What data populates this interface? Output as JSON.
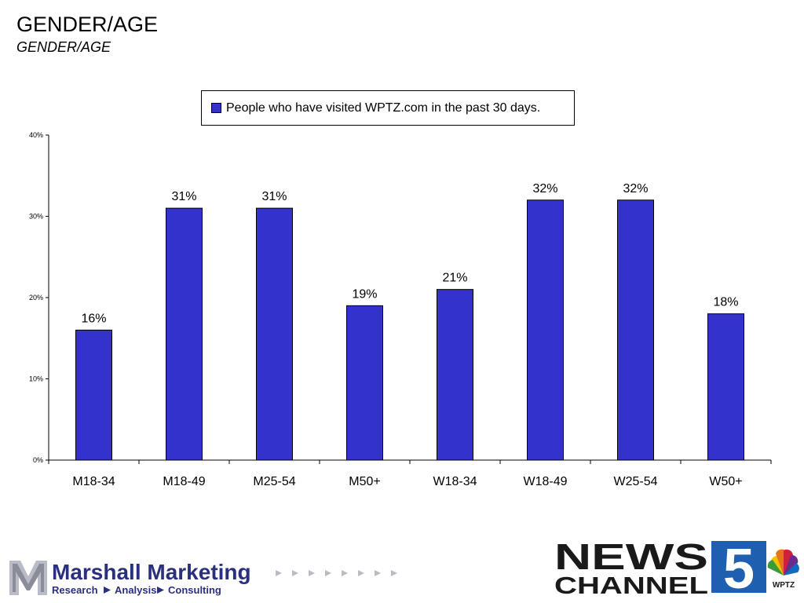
{
  "slide": {
    "title": "GENDER/AGE",
    "subtitle": "GENDER/AGE"
  },
  "chart_data": {
    "type": "bar",
    "categories": [
      "M18-34",
      "M18-49",
      "M25-54",
      "M50+",
      "W18-34",
      "W18-49",
      "W25-54",
      "W50+"
    ],
    "series": [
      {
        "name": "People who have visited WPTZ.com in the past 30 days.",
        "values": [
          16,
          31,
          31,
          19,
          21,
          32,
          32,
          18
        ],
        "labels": [
          "16%",
          "31%",
          "31%",
          "19%",
          "21%",
          "32%",
          "32%",
          "18%"
        ]
      }
    ],
    "ylim": [
      0,
      40
    ],
    "yticks": [
      0,
      10,
      20,
      30,
      40
    ],
    "ytick_labels": [
      "0%",
      "10%",
      "20%",
      "30%",
      "40%"
    ],
    "xlabel": "",
    "ylabel": "",
    "grid": false,
    "legend": "top-center",
    "bar_color": "#3333cc"
  },
  "footer": {
    "company": "Marshall Marketing",
    "tagline_1": "Research",
    "tagline_2": "Analysis",
    "tagline_3": "Consulting",
    "station_logo_line1": "NEWS",
    "station_logo_line2": "CHANNEL",
    "station_logo_number": "5",
    "station_callsign": "WPTZ",
    "brand_blue": "#2a2f7e",
    "accent_blue": "#1f5fb0"
  }
}
